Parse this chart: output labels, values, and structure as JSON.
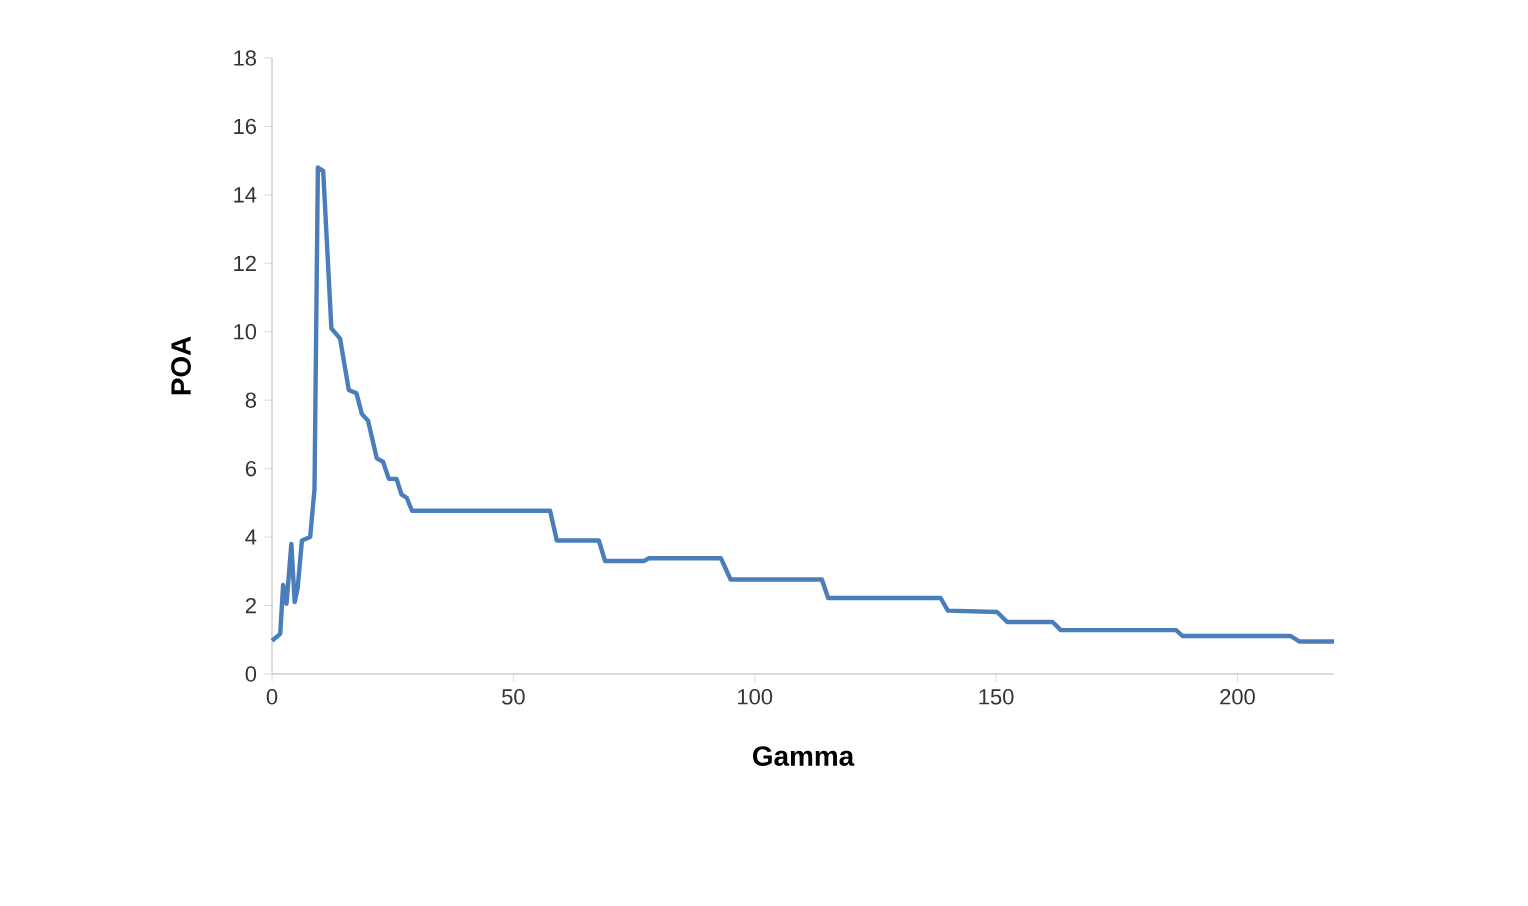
{
  "chart_data": {
    "type": "line",
    "xlabel": "Gamma",
    "ylabel": "POA",
    "xlim": [
      0,
      220
    ],
    "ylim": [
      0,
      18
    ],
    "xticks": [
      0,
      50,
      100,
      150,
      200
    ],
    "yticks": [
      0,
      2,
      4,
      6,
      8,
      10,
      12,
      14,
      16,
      18
    ],
    "marker": "none",
    "line_style": "solid",
    "series": [
      {
        "color": "#4a7ebb",
        "x": [
          0,
          1.7,
          2.3,
          3,
          4,
          4.7,
          5.3,
          6.2,
          7.9,
          8.8,
          9.5,
          10.6,
          12.3,
          14.1,
          15.9,
          17.5,
          18.6,
          19.9,
          21.7,
          23,
          24.2,
          25.8,
          26.8,
          27.9,
          29,
          57.6,
          59,
          67.7,
          69,
          77,
          78,
          93,
          95,
          113.9,
          115.2,
          138.5,
          140,
          150.2,
          152.3,
          161.7,
          163.4,
          187.3,
          188.6,
          211,
          212.8,
          220
        ],
        "values": [
          0.97,
          1.17,
          2.6,
          2.05,
          3.8,
          2.1,
          2.5,
          3.9,
          4.0,
          5.4,
          14.8,
          14.7,
          10.1,
          9.8,
          8.3,
          8.2,
          7.6,
          7.4,
          6.3,
          6.2,
          5.7,
          5.7,
          5.25,
          5.15,
          4.77,
          4.77,
          3.9,
          3.9,
          3.3,
          3.3,
          3.38,
          3.38,
          2.76,
          2.76,
          2.22,
          2.22,
          1.85,
          1.81,
          1.52,
          1.52,
          1.28,
          1.28,
          1.11,
          1.11,
          0.95,
          0.95
        ]
      }
    ]
  }
}
